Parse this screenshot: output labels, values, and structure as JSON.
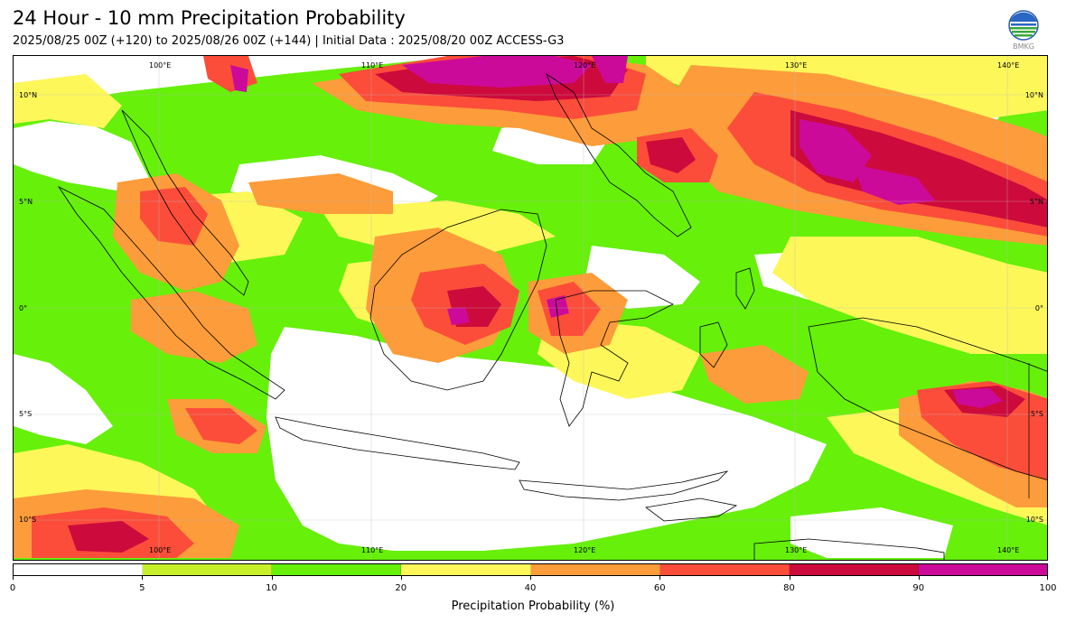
{
  "header": {
    "title": "24 Hour - 10 mm Precipitation Probability",
    "subtitle": "2025/08/25 00Z (+120) to 2025/08/26 00Z (+144) | Initial Data : 2025/08/20 00Z ACCESS-G3",
    "logo_text": "BMKG"
  },
  "map": {
    "lon_labels_top": [
      "100°E",
      "110°E",
      "120°E",
      "130°E",
      "140°E"
    ],
    "lon_labels_bottom": [
      "100°E",
      "110°E",
      "120°E",
      "130°E",
      "140°E"
    ],
    "lat_labels_left": [
      "10°N",
      "5°N",
      "0°",
      "5°S",
      "10°S"
    ],
    "lat_labels_right": [
      "10°N",
      "5°N",
      "0°",
      "5°S",
      "10°S"
    ]
  },
  "colorbar": {
    "label": "Precipitation Probability (%)",
    "ticks": [
      "0",
      "5",
      "10",
      "20",
      "40",
      "60",
      "80",
      "90",
      "100"
    ],
    "colors": [
      "#ffffff",
      "#c8f02a",
      "#66f00a",
      "#fdf75a",
      "#fd9c3a",
      "#fb4d3a",
      "#cd0a3c",
      "#cc0a99"
    ]
  },
  "legend_colors": {
    "white": "#ffffff",
    "lime": "#c8f02a",
    "green": "#66f00a",
    "yellow": "#fdf75a",
    "orange": "#fd9c3a",
    "red": "#fb4d3a",
    "crimson": "#cd0a3c",
    "magenta": "#cc0a99"
  }
}
